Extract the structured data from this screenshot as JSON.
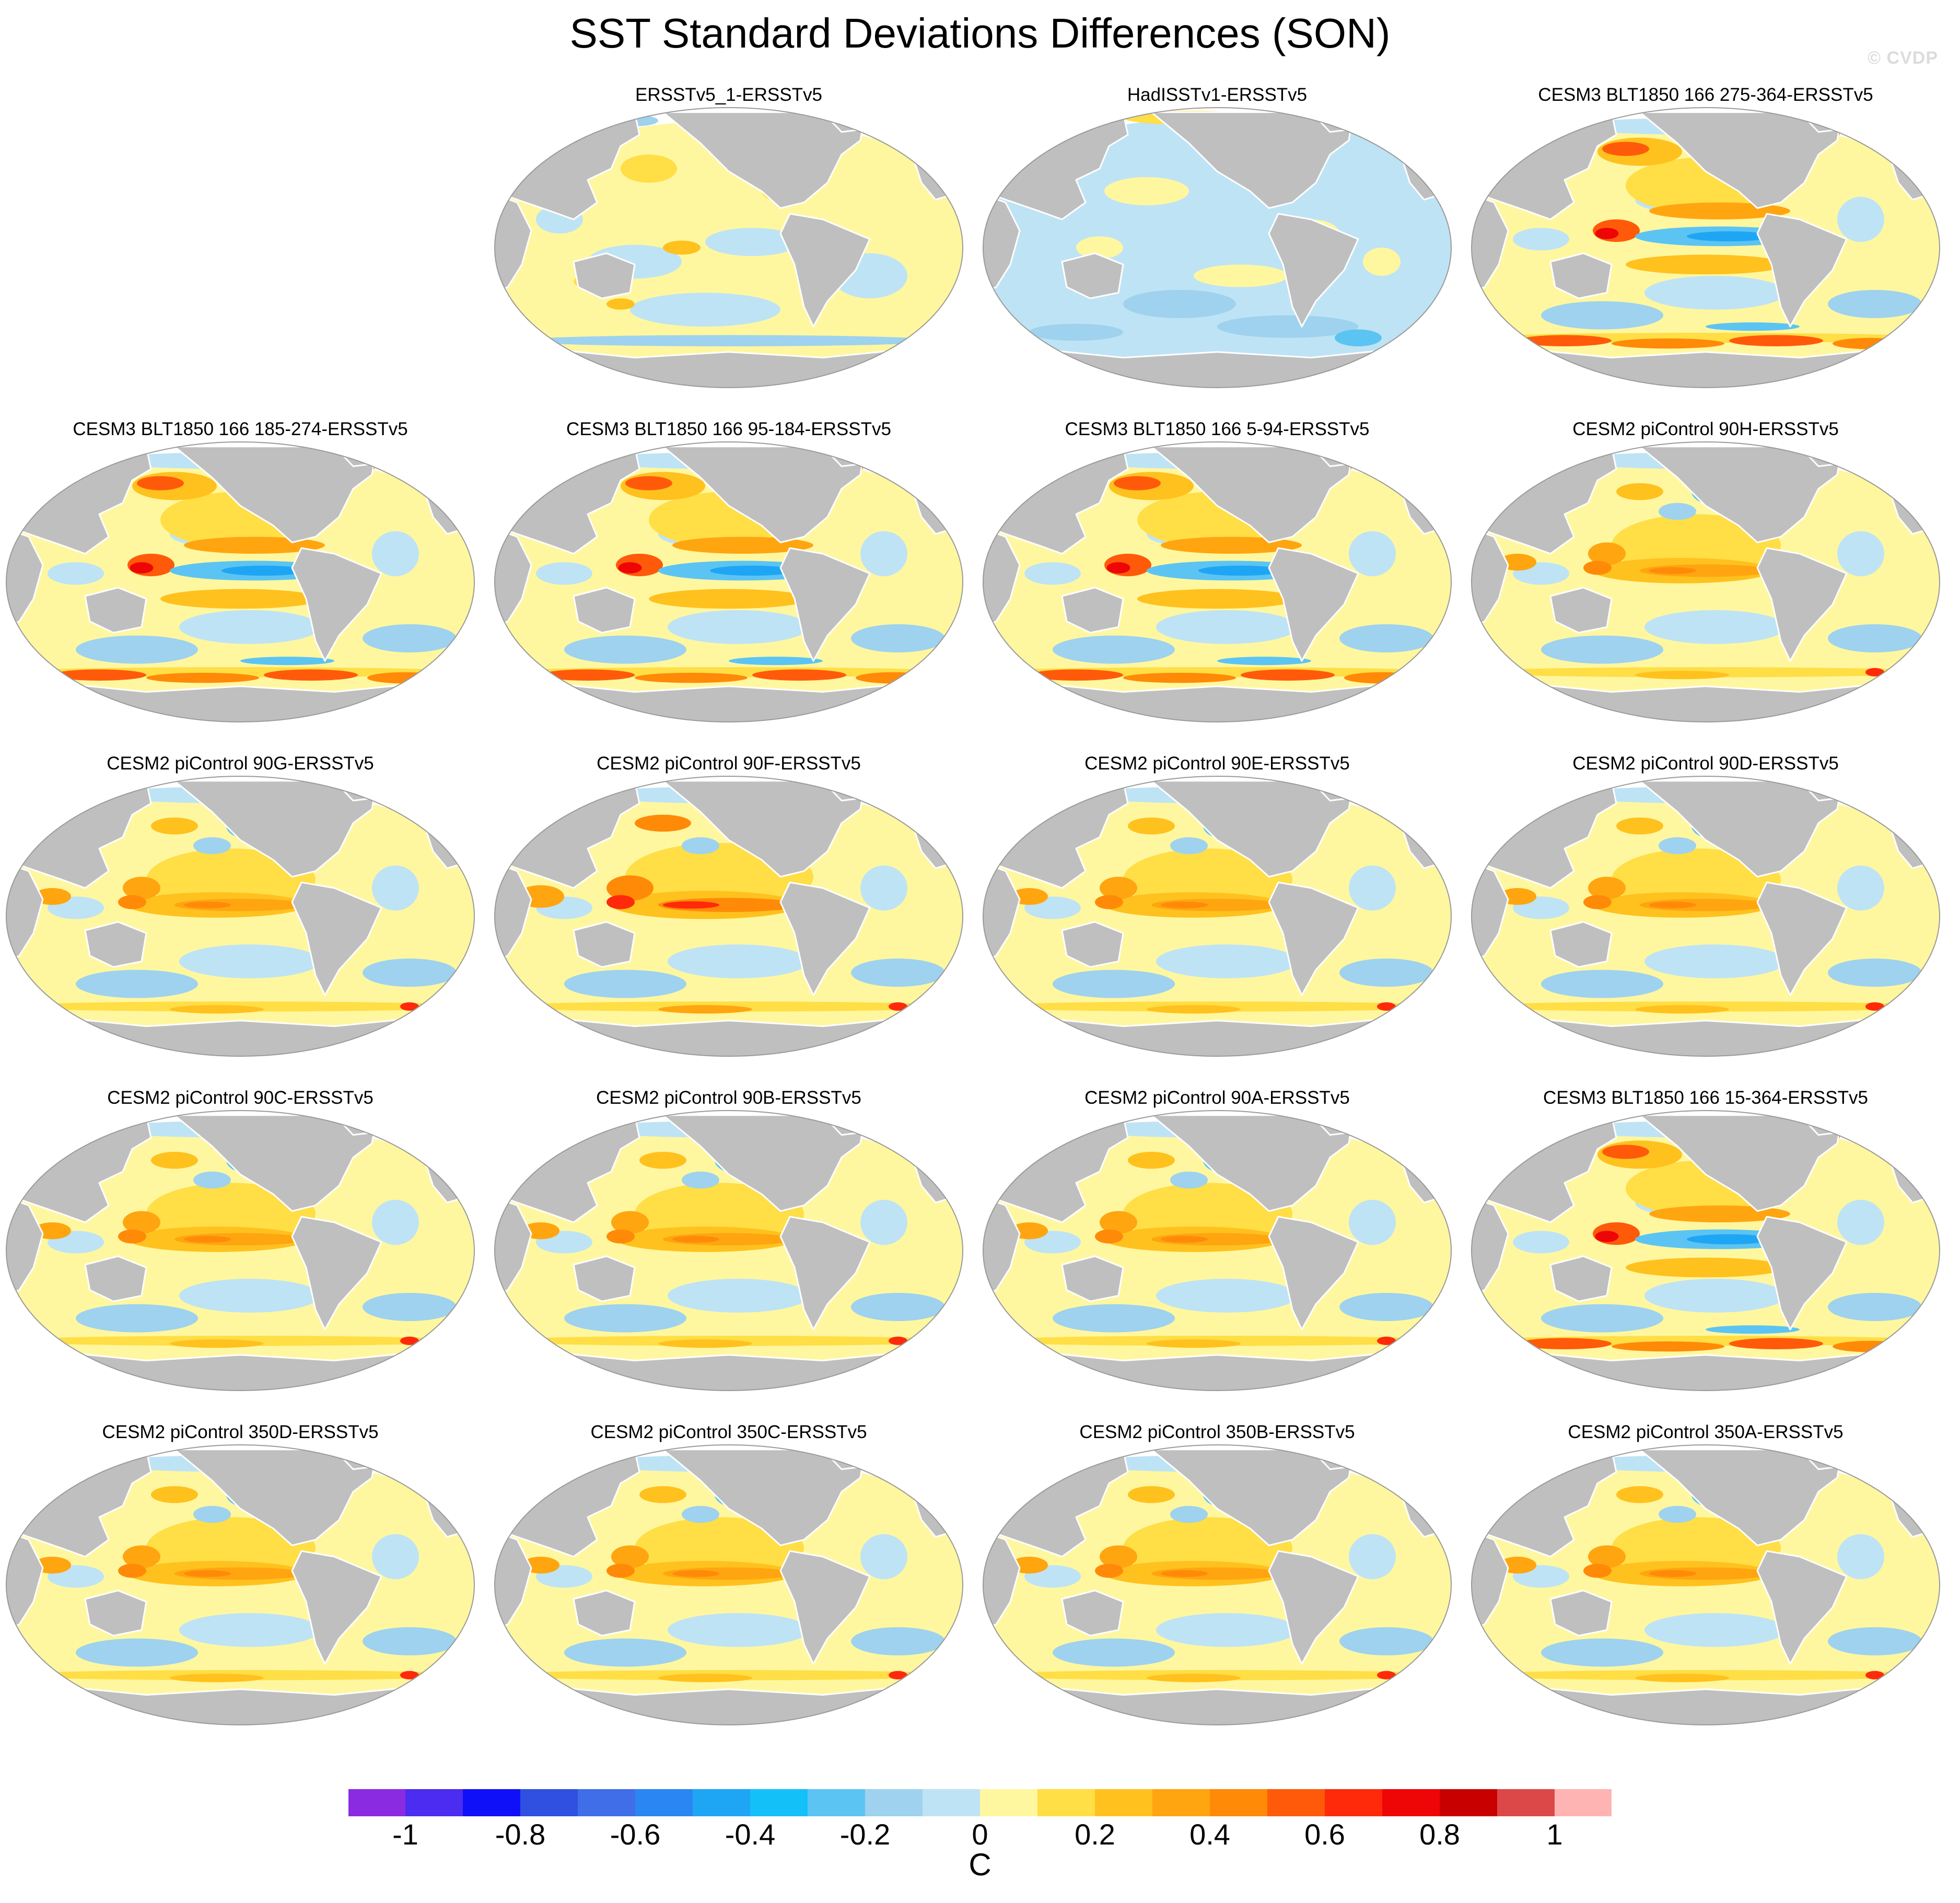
{
  "title": "SST Standard Deviations Differences (SON)",
  "watermark": "© CVDP",
  "panels": [
    {
      "label": "ERSSTv5_1-ERSSTv5",
      "row": 0,
      "col": 1,
      "pattern": "obs"
    },
    {
      "label": "HadISSTv1-ERSSTv5",
      "row": 0,
      "col": 2,
      "pattern": "had"
    },
    {
      "label": "CESM3 BLT1850 166 275-364-ERSSTv5",
      "row": 0,
      "col": 3,
      "pattern": "cesm3"
    },
    {
      "label": "CESM3 BLT1850 166 185-274-ERSSTv5",
      "row": 1,
      "col": 0,
      "pattern": "cesm3"
    },
    {
      "label": "CESM3 BLT1850 166 95-184-ERSSTv5",
      "row": 1,
      "col": 1,
      "pattern": "cesm3"
    },
    {
      "label": "CESM3 BLT1850 166 5-94-ERSSTv5",
      "row": 1,
      "col": 2,
      "pattern": "cesm3"
    },
    {
      "label": "CESM2 piControl 90H-ERSSTv5",
      "row": 1,
      "col": 3,
      "pattern": "cesm2"
    },
    {
      "label": "CESM2 piControl 90G-ERSSTv5",
      "row": 2,
      "col": 0,
      "pattern": "cesm2"
    },
    {
      "label": "CESM2 piControl 90F-ERSSTv5",
      "row": 2,
      "col": 1,
      "pattern": "cesm2strong"
    },
    {
      "label": "CESM2 piControl 90E-ERSSTv5",
      "row": 2,
      "col": 2,
      "pattern": "cesm2"
    },
    {
      "label": "CESM2 piControl 90D-ERSSTv5",
      "row": 2,
      "col": 3,
      "pattern": "cesm2"
    },
    {
      "label": "CESM2 piControl 90C-ERSSTv5",
      "row": 3,
      "col": 0,
      "pattern": "cesm2"
    },
    {
      "label": "CESM2 piControl 90B-ERSSTv5",
      "row": 3,
      "col": 1,
      "pattern": "cesm2"
    },
    {
      "label": "CESM2 piControl 90A-ERSSTv5",
      "row": 3,
      "col": 2,
      "pattern": "cesm2"
    },
    {
      "label": "CESM3 BLT1850 166 15-364-ERSSTv5",
      "row": 3,
      "col": 3,
      "pattern": "cesm3"
    },
    {
      "label": "CESM2 piControl 350D-ERSSTv5",
      "row": 4,
      "col": 0,
      "pattern": "cesm2"
    },
    {
      "label": "CESM2 piControl 350C-ERSSTv5",
      "row": 4,
      "col": 1,
      "pattern": "cesm2"
    },
    {
      "label": "CESM2 piControl 350B-ERSSTv5",
      "row": 4,
      "col": 2,
      "pattern": "cesm2"
    },
    {
      "label": "CESM2 piControl 350A-ERSSTv5",
      "row": 4,
      "col": 3,
      "pattern": "cesm2"
    }
  ],
  "colorbar": {
    "unit": "C",
    "ticks": [
      "-1",
      "-0.8",
      "-0.6",
      "-0.4",
      "-0.2",
      "0",
      "0.2",
      "0.4",
      "0.6",
      "0.8",
      "1"
    ],
    "colors": [
      "#8a2be2",
      "#4b2cf0",
      "#1010f8",
      "#2f50e0",
      "#3f6ee8",
      "#2a86f2",
      "#1ea6f5",
      "#14c0f8",
      "#5cc4f2",
      "#9ed2ee",
      "#bee3f5",
      "#fff7a0",
      "#ffde46",
      "#ffc11e",
      "#ffa510",
      "#ff8a08",
      "#ff5a0a",
      "#ff2a0a",
      "#ee0505",
      "#c80000",
      "#dc4848",
      "#ffb4b4"
    ]
  },
  "map_colors": {
    "land": "#bfbfbf",
    "coast": "#ffffff",
    "outline": "#9a9a9a"
  }
}
